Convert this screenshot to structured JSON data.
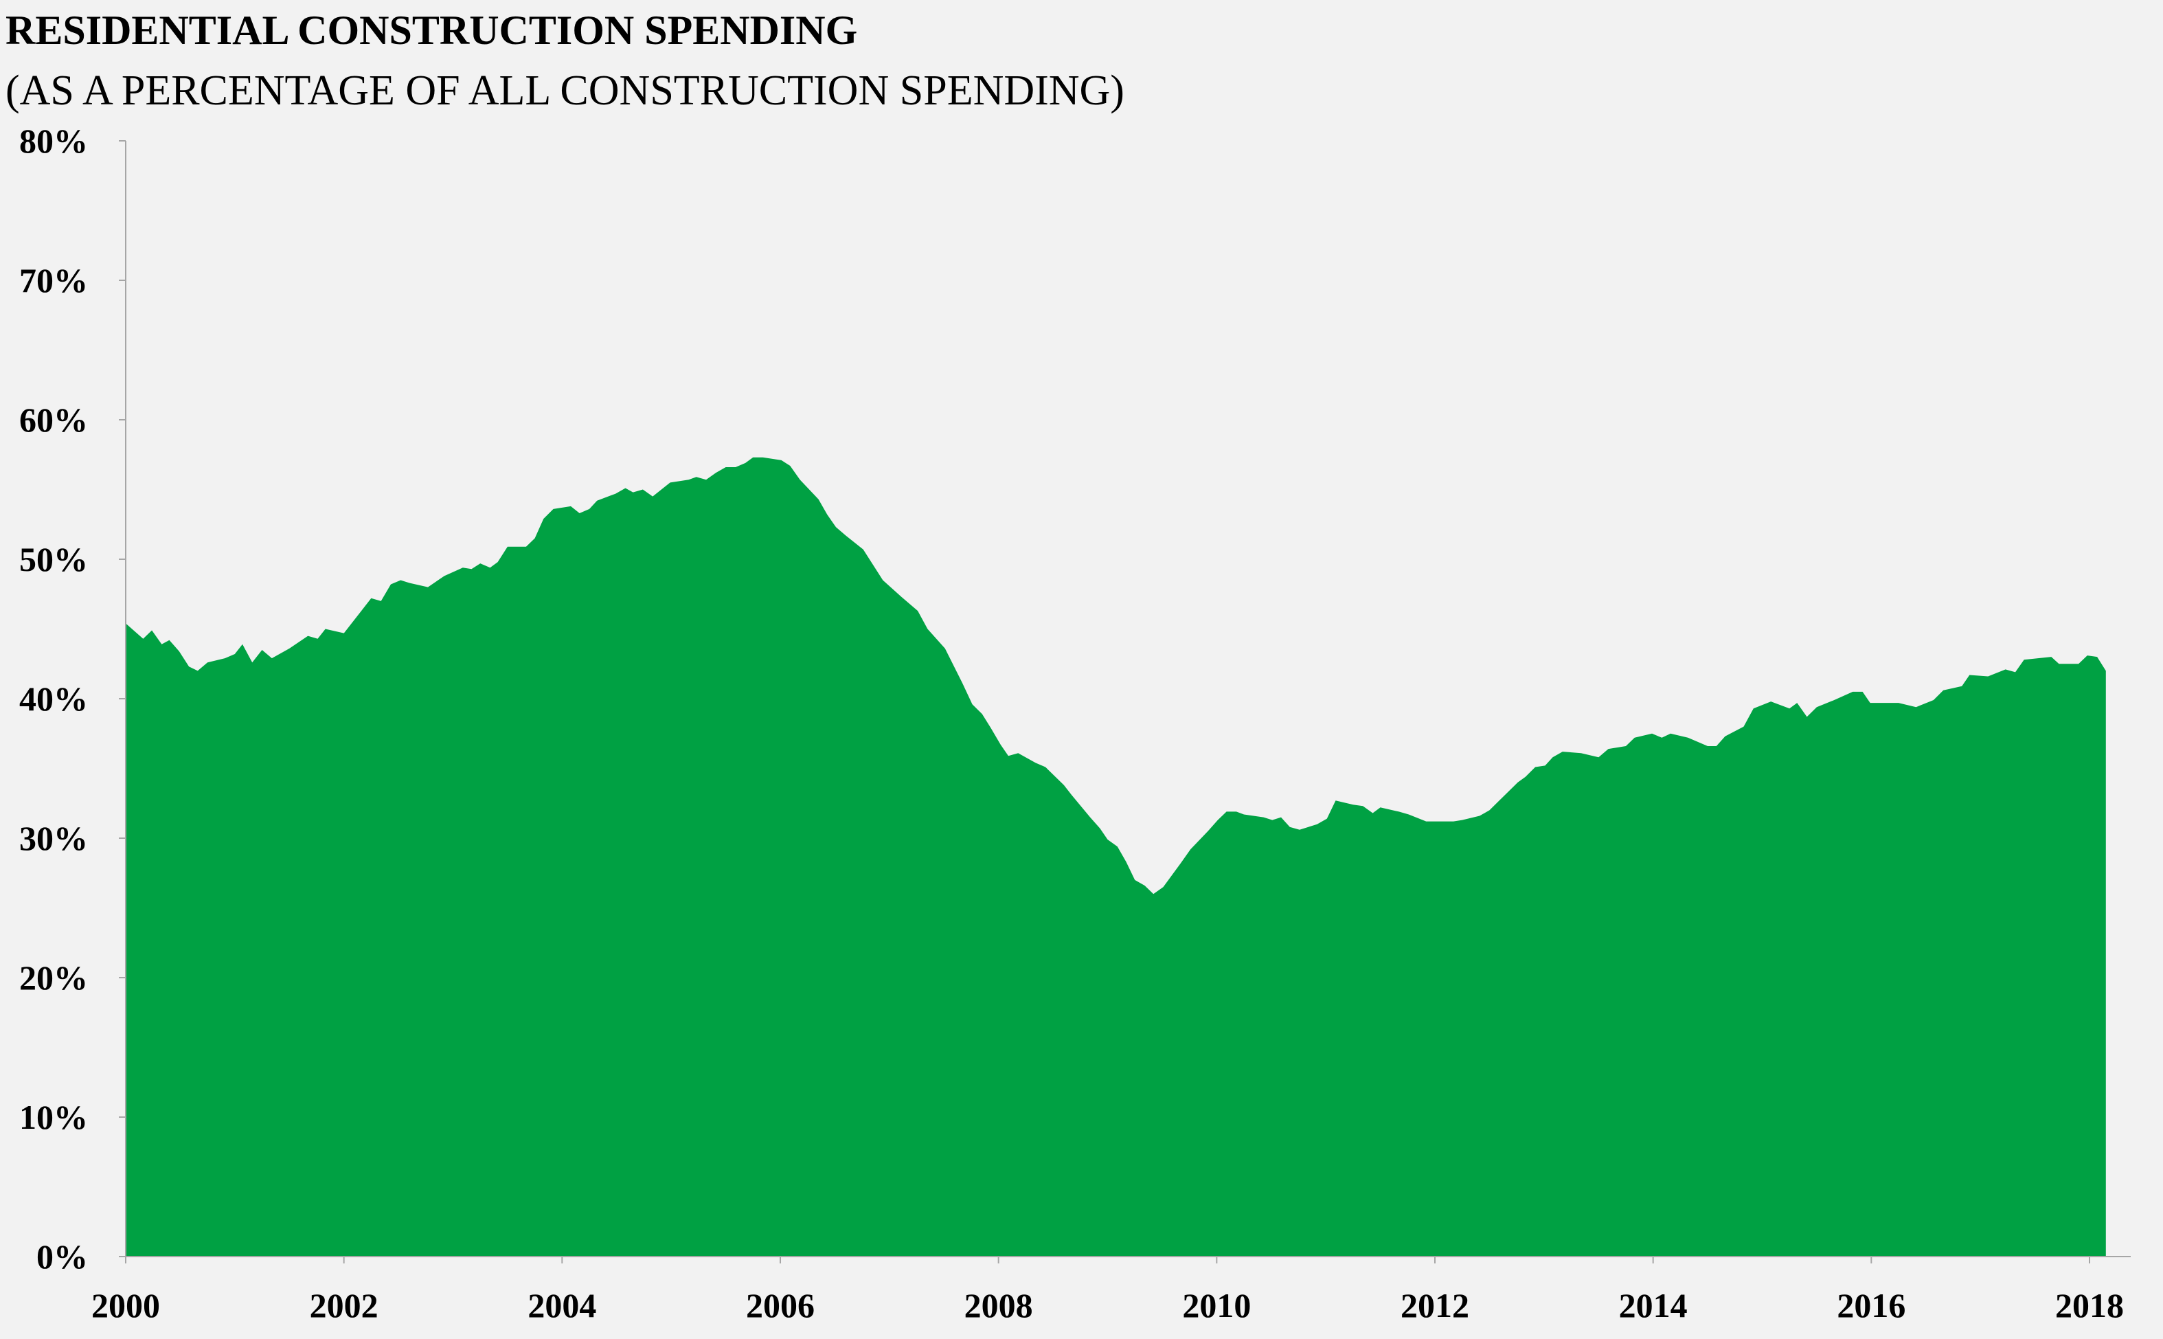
{
  "chart_data": {
    "type": "area",
    "title": "RESIDENTIAL CONSTRUCTION SPENDING",
    "subtitle": "(AS A PERCENTAGE OF ALL CONSTRUCTION SPENDING)",
    "xlabel": "",
    "ylabel": "",
    "xlim": [
      2000,
      2018.15
    ],
    "ylim": [
      0,
      80
    ],
    "x_ticks": [
      "2000",
      "2002",
      "2004",
      "2006",
      "2008",
      "2010",
      "2012",
      "2014",
      "2016",
      "2018"
    ],
    "y_ticks": [
      "0%",
      "10%",
      "20%",
      "30%",
      "40%",
      "50%",
      "60%",
      "70%",
      "80%"
    ],
    "grid": false,
    "legend": "none",
    "colors": {
      "fill": "#00a143",
      "background": "#f2f2f2",
      "axis": "#a6a6a6"
    },
    "x": [
      2000.0,
      2000.16,
      2000.24,
      2000.33,
      2000.4,
      2000.49,
      2000.58,
      2000.66,
      2000.75,
      2000.91,
      2001.0,
      2001.07,
      2001.16,
      2001.25,
      2001.34,
      2001.5,
      2001.67,
      2001.76,
      2001.83,
      2002.0,
      2002.16,
      2002.25,
      2002.34,
      2002.43,
      2002.52,
      2002.6,
      2002.77,
      2002.92,
      2003.09,
      2003.17,
      2003.25,
      2003.34,
      2003.41,
      2003.5,
      2003.67,
      2003.75,
      2003.83,
      2003.92,
      2004.08,
      2004.16,
      2004.25,
      2004.32,
      2004.49,
      2004.58,
      2004.65,
      2004.74,
      2004.83,
      2004.99,
      2005.16,
      2005.23,
      2005.32,
      2005.41,
      2005.5,
      2005.59,
      2005.68,
      2005.75,
      2005.84,
      2006.01,
      2006.09,
      2006.18,
      2006.35,
      2006.43,
      2006.51,
      2006.6,
      2006.76,
      2006.85,
      2006.94,
      2007.11,
      2007.26,
      2007.35,
      2007.51,
      2007.67,
      2007.76,
      2007.85,
      2007.93,
      2008.02,
      2008.09,
      2008.18,
      2008.34,
      2008.43,
      2008.6,
      2008.67,
      2008.84,
      2008.93,
      2009.0,
      2009.09,
      2009.17,
      2009.25,
      2009.34,
      2009.42,
      2009.51,
      2009.67,
      2009.76,
      2009.92,
      2010.01,
      2010.09,
      2010.18,
      2010.25,
      2010.43,
      2010.51,
      2010.59,
      2010.67,
      2010.76,
      2010.92,
      2011.01,
      2011.09,
      2011.25,
      2011.34,
      2011.43,
      2011.5,
      2011.67,
      2011.76,
      2011.92,
      2012.09,
      2012.17,
      2012.25,
      2012.41,
      2012.5,
      2012.59,
      2012.76,
      2012.83,
      2012.92,
      2013.01,
      2013.08,
      2013.17,
      2013.34,
      2013.5,
      2013.59,
      2013.75,
      2013.83,
      2013.99,
      2014.08,
      2014.16,
      2014.32,
      2014.5,
      2014.58,
      2014.66,
      2014.83,
      2014.92,
      2015.08,
      2015.25,
      2015.32,
      2015.41,
      2015.5,
      2015.66,
      2015.83,
      2015.92,
      2015.99,
      2016.25,
      2016.41,
      2016.57,
      2016.66,
      2016.83,
      2016.9,
      2017.07,
      2017.23,
      2017.32,
      2017.4,
      2017.65,
      2017.72,
      2017.9,
      2017.98,
      2018.07,
      2018.15
    ],
    "values": [
      45.4,
      44.3,
      44.9,
      43.9,
      44.2,
      43.4,
      42.3,
      42.0,
      42.6,
      42.9,
      43.2,
      43.9,
      42.6,
      43.5,
      42.9,
      43.6,
      44.5,
      44.3,
      45.0,
      44.7,
      46.3,
      47.2,
      47.0,
      48.2,
      48.5,
      48.3,
      48.0,
      48.8,
      49.4,
      49.3,
      49.7,
      49.4,
      49.8,
      50.9,
      50.9,
      51.5,
      52.9,
      53.6,
      53.8,
      53.3,
      53.6,
      54.2,
      54.7,
      55.1,
      54.8,
      55.0,
      54.5,
      55.5,
      55.7,
      55.9,
      55.7,
      56.2,
      56.6,
      56.6,
      56.9,
      57.3,
      57.3,
      57.1,
      56.7,
      55.7,
      54.3,
      53.2,
      52.3,
      51.7,
      50.7,
      49.6,
      48.5,
      47.3,
      46.3,
      45.0,
      43.6,
      41.1,
      39.6,
      38.9,
      37.9,
      36.7,
      35.9,
      36.1,
      35.4,
      35.1,
      33.8,
      33.1,
      31.5,
      30.7,
      29.9,
      29.4,
      28.3,
      27.0,
      26.6,
      26.0,
      26.5,
      28.2,
      29.2,
      30.5,
      31.3,
      31.9,
      31.9,
      31.7,
      31.5,
      31.3,
      31.5,
      30.8,
      30.6,
      31.0,
      31.4,
      32.7,
      32.4,
      32.3,
      31.8,
      32.2,
      31.9,
      31.7,
      31.2,
      31.2,
      31.2,
      31.3,
      31.6,
      32.0,
      32.7,
      34.0,
      34.4,
      35.1,
      35.2,
      35.8,
      36.2,
      36.1,
      35.8,
      36.4,
      36.6,
      37.2,
      37.5,
      37.2,
      37.5,
      37.2,
      36.6,
      36.6,
      37.3,
      38.0,
      39.3,
      39.8,
      39.3,
      39.7,
      38.7,
      39.4,
      39.9,
      40.5,
      40.5,
      39.7,
      39.7,
      39.4,
      39.9,
      40.6,
      40.9,
      41.7,
      41.6,
      42.1,
      41.9,
      42.8,
      43.0,
      42.5,
      42.5,
      43.1,
      43.0,
      42.0
    ]
  }
}
